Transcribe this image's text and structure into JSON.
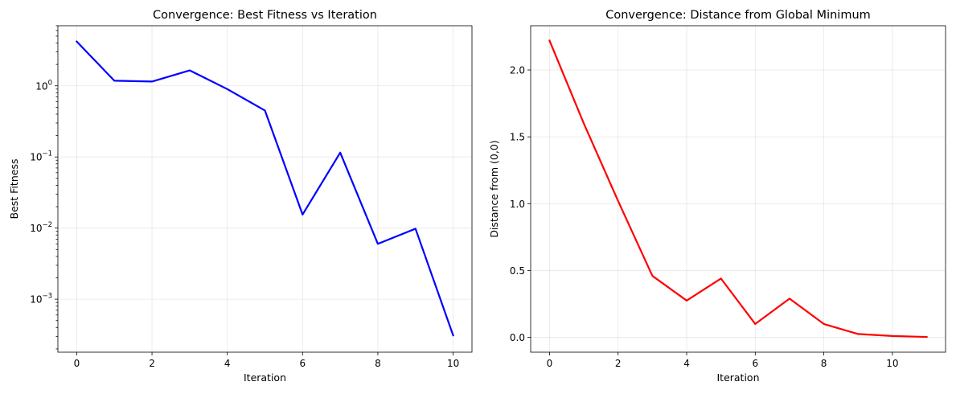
{
  "chart_data": [
    {
      "type": "line",
      "title": "Convergence: Best Fitness vs Iteration",
      "xlabel": "Iteration",
      "ylabel": "Best Fitness",
      "yscale": "log",
      "xlim": [
        -0.5,
        10.5
      ],
      "ylim": [
        0.00018,
        7.0
      ],
      "x_ticks": [
        0,
        2,
        4,
        6,
        8,
        10
      ],
      "y_ticks": [
        {
          "value": 1,
          "base": "10",
          "exp": "0"
        },
        {
          "value": 0.1,
          "base": "10",
          "exp": "−1"
        },
        {
          "value": 0.01,
          "base": "10",
          "exp": "−2"
        },
        {
          "value": 0.001,
          "base": "10",
          "exp": "−3"
        }
      ],
      "grid": true,
      "series": [
        {
          "color": "#0000ff",
          "x": [
            0,
            1,
            2,
            3,
            4,
            5,
            6,
            7,
            8,
            9,
            10
          ],
          "y": [
            4.2,
            1.18,
            1.15,
            1.65,
            0.9,
            0.45,
            0.0155,
            0.115,
            0.006,
            0.0098,
            0.00031
          ]
        }
      ]
    },
    {
      "type": "line",
      "title": "Convergence: Distance from Global Minimum",
      "xlabel": "Iteration",
      "ylabel": "Distance from (0,0)",
      "yscale": "linear",
      "xlim": [
        -0.55,
        11.55
      ],
      "ylim": [
        -0.111,
        2.331
      ],
      "x_ticks": [
        0,
        2,
        4,
        6,
        8,
        10
      ],
      "y_ticks": [
        {
          "value": 0.0,
          "label": "0.0"
        },
        {
          "value": 0.5,
          "label": "0.5"
        },
        {
          "value": 1.0,
          "label": "1.0"
        },
        {
          "value": 1.5,
          "label": "1.5"
        },
        {
          "value": 2.0,
          "label": "2.0"
        }
      ],
      "grid": true,
      "series": [
        {
          "color": "#ff0000",
          "x": [
            0,
            1,
            2,
            3,
            4,
            5,
            6,
            7,
            8,
            9,
            10,
            11
          ],
          "y": [
            2.22,
            1.6,
            1.02,
            0.46,
            0.275,
            0.44,
            0.1,
            0.29,
            0.1,
            0.025,
            0.01,
            0.003
          ]
        }
      ]
    }
  ]
}
